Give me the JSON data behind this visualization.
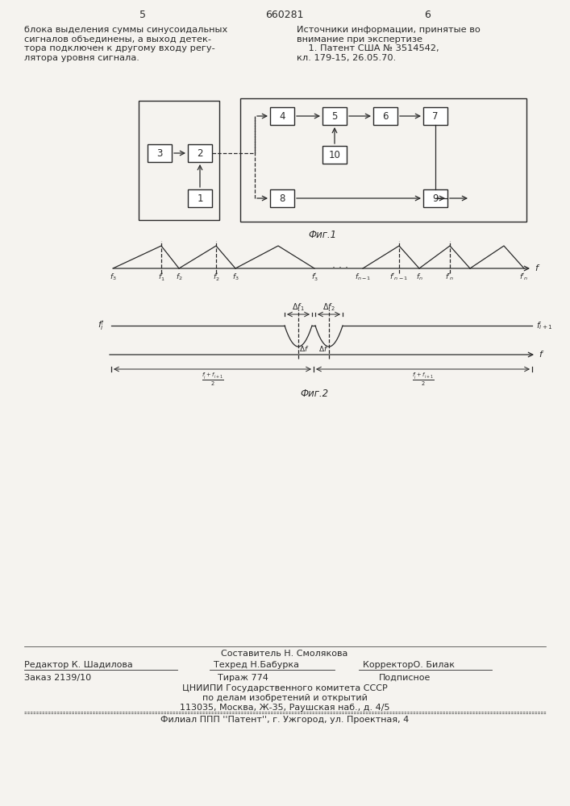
{
  "bg_color": "#f5f3ef",
  "page_number_left": "5",
  "page_number_center": "660281",
  "page_number_right": "6",
  "text_left": "блока выделения суммы синусоидальных\nсигналов объединены, а выход детек-\nтора подключен к другому входу регу-\nлятора уровня сигнала.",
  "text_right": "Источники информации, принятые во\nвнимание при экспертизе\n    1. Патент США № 3514542,\nкл. 179-15, 26.05.70.",
  "fig1_caption": "Фиг.1",
  "fig2_caption": "Фиг.2",
  "footer_line1": "Составитель Н. Смолякова",
  "footer_line2_left": "Редактор К. Шадилова",
  "footer_line2_mid": "Техред Н.Бабурка",
  "footer_line2_right": "КорректорО. Билак",
  "footer_line3_left": "Заказ 2139/10",
  "footer_line3_mid": "Тираж 774",
  "footer_line3_right": "Подписное",
  "footer_line4": "ЦНИИПИ Государственного комитета СССР",
  "footer_line5": "по делам изобретений и открытий",
  "footer_line6": "113035, Москва, Ж-35, Раушская наб., д. 4/5",
  "footer_line7": "Филиал ППП ''Патент'', г. Ужгород, ул. Проектная, 4"
}
